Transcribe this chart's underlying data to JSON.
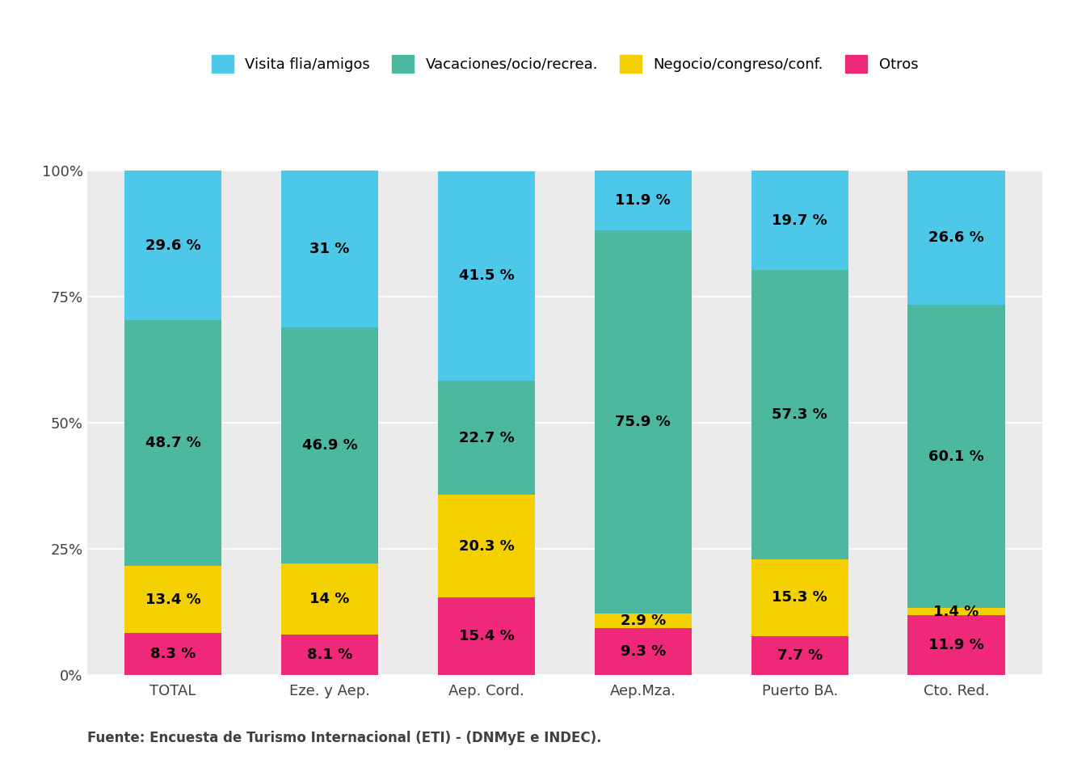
{
  "categories": [
    "TOTAL",
    "Eze. y Aep.",
    "Aep. Cord.",
    "Aep.Mza.",
    "Puerto BA.",
    "Cto. Red."
  ],
  "series": {
    "Otros": [
      8.3,
      8.1,
      15.4,
      9.3,
      7.7,
      11.9
    ],
    "Negocio/congreso/conf.": [
      13.4,
      14.0,
      20.3,
      2.9,
      15.3,
      1.4
    ],
    "Vacaciones/ocio/recrea.": [
      48.7,
      46.9,
      22.7,
      75.9,
      57.3,
      60.1
    ],
    "Visita flia/amigos": [
      29.6,
      31.0,
      41.5,
      11.9,
      19.7,
      26.6
    ]
  },
  "colors": {
    "Visita flia/amigos": "#4DC8E8",
    "Vacaciones/ocio/recrea.": "#4DB8A0",
    "Negocio/congreso/conf.": "#F5D000",
    "Otros": "#F0287A"
  },
  "legend_labels": [
    "Visita flia/amigos",
    "Vacaciones/ocio/recrea.",
    "Negocio/congreso/conf.",
    "Otros"
  ],
  "yticks": [
    0,
    25,
    50,
    75,
    100
  ],
  "ytick_labels": [
    "0%",
    "25%",
    "50%",
    "75%",
    "100%"
  ],
  "footnote": "Fuente: Encuesta de Turismo Internacional (ETI) - (DNMyE e INDEC).",
  "background_color": "#FFFFFF",
  "plot_background": "#EBEBEB",
  "grid_color": "#FFFFFF",
  "text_color": "#404040",
  "bar_width": 0.62,
  "label_fontsize": 13,
  "tick_fontsize": 13,
  "legend_fontsize": 13,
  "footnote_fontsize": 12
}
